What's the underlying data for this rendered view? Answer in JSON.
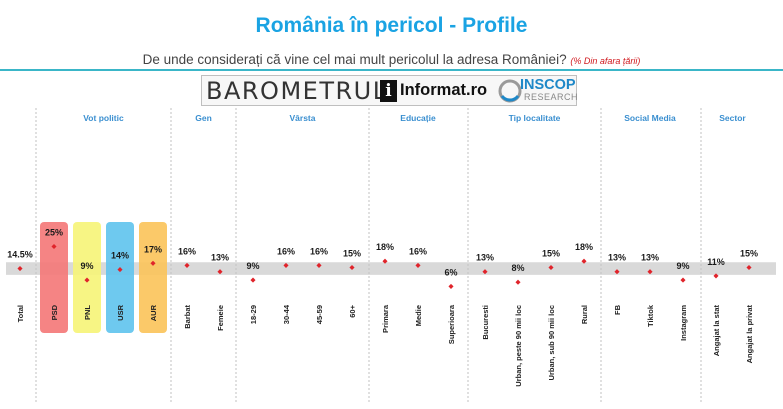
{
  "header": {
    "title": "România în pericol - Profile",
    "subtitle": "De unde considerați că vine cel mai mult pericolul la adresa României?",
    "note": "(% Din afara țării)"
  },
  "brand": {
    "barometer": "BAROMETRUL",
    "informat_badge": "i",
    "informat": "Informat.ro",
    "inscop": "INSCOP",
    "research": "RESEARCH"
  },
  "colors": {
    "title": "#1aa3e3",
    "point": "#e0242b",
    "band": "#d9d9d9",
    "group_label": "#3a8fd0",
    "PSD": "#f4797a",
    "PNL": "#f6f47a",
    "USR": "#62c4ee",
    "AUR": "#fbc45c"
  },
  "chart_data": {
    "type": "scatter",
    "title": "România în pericol - Profile",
    "subtitle": "De unde considerați că vine cel mai mult pericolul la adresa României?",
    "ylim": [
      0,
      30
    ],
    "band": [
      11.5,
      17.5
    ],
    "grid": false,
    "legend": "none",
    "groups": [
      {
        "name": "",
        "categories": [
          "Total"
        ],
        "values": [
          14.5
        ],
        "labels": [
          "14.5%"
        ]
      },
      {
        "name": "Vot politic",
        "categories": [
          "PSD",
          "PNL",
          "USR",
          "AUR"
        ],
        "values": [
          25,
          9,
          14,
          17
        ],
        "labels": [
          "25%",
          "9%",
          "14%",
          "17%"
        ],
        "highlight": [
          "PSD",
          "PNL",
          "USR",
          "AUR"
        ]
      },
      {
        "name": "Gen",
        "categories": [
          "Barbat",
          "Femeie"
        ],
        "values": [
          16,
          13
        ],
        "labels": [
          "16%",
          "13%"
        ]
      },
      {
        "name": "Vârsta",
        "categories": [
          "18-29",
          "30-44",
          "45-59",
          "60+"
        ],
        "values": [
          9,
          16,
          16,
          15
        ],
        "labels": [
          "9%",
          "16%",
          "16%",
          "15%"
        ]
      },
      {
        "name": "Educație",
        "categories": [
          "Primara",
          "Medie",
          "Superioara"
        ],
        "values": [
          18,
          16,
          6
        ],
        "labels": [
          "18%",
          "16%",
          "6%"
        ]
      },
      {
        "name": "Tip localitate",
        "categories": [
          "Bucuresti",
          "Urban, peste 90 mii loc",
          "Urban, sub 90 mii loc",
          "Rural"
        ],
        "values": [
          13,
          8,
          15,
          18
        ],
        "labels": [
          "13%",
          "8%",
          "15%",
          "18%"
        ]
      },
      {
        "name": "Social Media",
        "categories": [
          "FB",
          "Tiktok",
          "Instagram"
        ],
        "values": [
          13,
          13,
          9
        ],
        "labels": [
          "13%",
          "13%",
          "9%"
        ]
      },
      {
        "name": "Sector",
        "categories": [
          "Angajat la stat",
          "Angajat la privat"
        ],
        "values": [
          11,
          15
        ],
        "labels": [
          "11%",
          "15%"
        ]
      }
    ]
  }
}
